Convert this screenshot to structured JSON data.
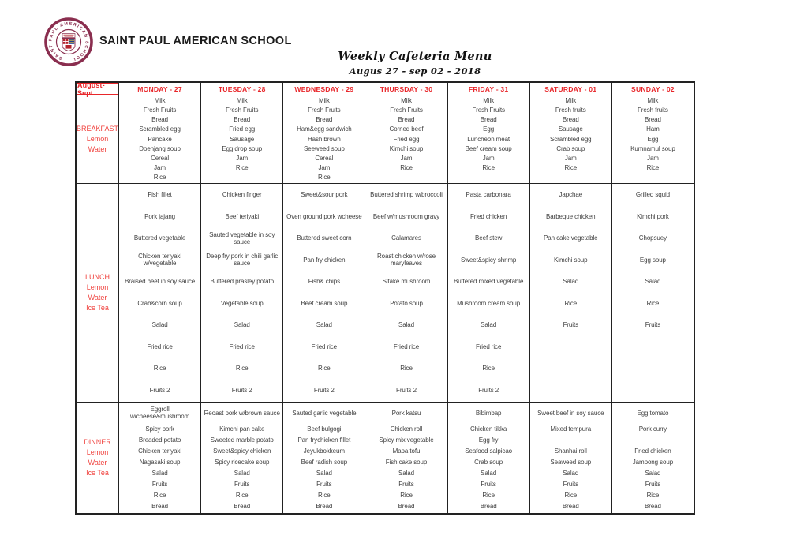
{
  "colors": {
    "accent_red": "#e8262a",
    "label_red": "#f0433f",
    "text": "#3f3f3f",
    "border": "#222222",
    "logo_maroon": "#8a2e4f",
    "crest_red": "#b5232d",
    "crest_blue": "#1d3e8f",
    "crest_yellow": "#e8c23a"
  },
  "header": {
    "school_name": "SAINT PAUL AMERICAN SCHOOL",
    "menu_title": "Weekly Cafeteria Menu",
    "date_range": "Augus 27 - sep 02 - 2018",
    "logo_ring_text": "SAINT PAUL AMERICAN SCHOOL"
  },
  "table": {
    "corner_label": "August-Sept",
    "day_headers": [
      "MONDAY - 27",
      "TUESDAY - 28",
      "WEDNESDAY - 29",
      "THURSDAY - 30",
      "FRIDAY - 31",
      "SATURDAY - 01",
      "SUNDAY - 02"
    ],
    "meal_rows": [
      {
        "id": "breakfast",
        "label_lines": [
          "BREAKFAST",
          "Lemon",
          "Water"
        ],
        "cells": [
          [
            "Milk",
            "Fresh Fruits",
            "Bread",
            "Scrambled egg",
            "Pancake",
            "Doenjang soup",
            "Cereal",
            "Jam",
            "Rice"
          ],
          [
            "Milk",
            "Fresh Fruits",
            "Bread",
            "Fried egg",
            "Sausage",
            "Egg drop soup",
            "Jam",
            "Rice",
            ""
          ],
          [
            "Milk",
            "Fresh Fruits",
            "Bread",
            "Ham&egg sandwich",
            "Hash brown",
            "Seeweed soup",
            "Cereal",
            "Jam",
            "Rice"
          ],
          [
            "Milk",
            "Fresh Fruits",
            "Bread",
            "Corned beef",
            "Fried egg",
            "Kimchi soup",
            "Jam",
            "Rice",
            ""
          ],
          [
            "Milk",
            "Fresh Fruits",
            "Bread",
            "Egg",
            "Luncheon meat",
            "Beef cream soup",
            "Jam",
            "Rice",
            ""
          ],
          [
            "Milk",
            "Fresh fruits",
            "Bread",
            "Sausage",
            "Scrambled egg",
            "Crab soup",
            "Jam",
            "Rice",
            ""
          ],
          [
            "Milk",
            "Fresh fruits",
            "Bread",
            "Ham",
            "Egg",
            "Kumnamul soup",
            "Jam",
            "Rice",
            ""
          ]
        ]
      },
      {
        "id": "lunch",
        "label_lines": [
          "LUNCH",
          "Lemon",
          "Water",
          "Ice Tea"
        ],
        "cells": [
          [
            "Fish fillet",
            "Pork jajang",
            "Buttered vegetable",
            "Chicken teriyaki w/vegetable",
            "Braised beef in soy sauce",
            "Crab&corn soup",
            "Salad",
            "Fried rice",
            "Rice",
            "Fruits 2"
          ],
          [
            "Chicken finger",
            "Beef teriyaki",
            "Sauted vegetable in soy sauce",
            "Deep fry pork in chili garlic sauce",
            "Buttered prasley potato",
            "Vegetable soup",
            "Salad",
            "Fried rice",
            "Rice",
            "Fruits 2"
          ],
          [
            "Sweet&sour pork",
            "Oven ground pork wcheese",
            "Buttered sweet corn",
            "Pan fry chicken",
            "Fish& chips",
            "Beef cream soup",
            "Salad",
            "Fried rice",
            "Rice",
            "Fruits 2"
          ],
          [
            "Buttered shrimp w/broccoli",
            "Beef w/mushroom gravy",
            "Calamares",
            "Roast chicken w/rose maryleaves",
            "Sitake mushroom",
            "Potato soup",
            "Salad",
            "Fried rice",
            "Rice",
            "Fruits 2"
          ],
          [
            "Pasta carbonara",
            "Fried chicken",
            "Beef stew",
            "Sweet&spicy shrimp",
            "Buttered mixed vegetable",
            "Mushroom cream soup",
            "Salad",
            "Fried rice",
            "Rice",
            "Fruits 2"
          ],
          [
            "Japchae",
            "Barbeque chicken",
            "Pan cake vegetable",
            "Kimchi soup",
            "Salad",
            "Rice",
            "Fruits",
            "",
            "",
            ""
          ],
          [
            "Grilled squid",
            "Kimchi pork",
            "Chopsuey",
            "Egg soup",
            "Salad",
            "Rice",
            "Fruits",
            "",
            "",
            ""
          ]
        ]
      },
      {
        "id": "dinner",
        "label_lines": [
          "DINNER",
          "Lemon",
          "Water",
          "Ice Tea"
        ],
        "cells": [
          [
            "Eggroll w/cheese&mushroom",
            "Spicy pork",
            "Breaded potato",
            "Chicken teriyaki",
            "Nagasaki soup",
            "Salad",
            "Fruits",
            "Rice",
            "Bread"
          ],
          [
            "Reoast pork w/brown sauce",
            "Kimchi pan cake",
            "Sweeted marble potato",
            "Sweet&spicy chicken",
            "Spicy ricecake soup",
            "Salad",
            "Fruits",
            "Rice",
            "Bread"
          ],
          [
            "Sauted garlic vegetable",
            "Beef bulgogi",
            "Pan frychicken fillet",
            "Jeyukbokkeum",
            "Beef radish soup",
            "Salad",
            "Fruits",
            "Rice",
            "Bread"
          ],
          [
            "Pork katsu",
            "Chicken roll",
            "Spicy mix vegetable",
            "Mapa tofu",
            "Fish cake soup",
            "Salad",
            "Fruits",
            "Rice",
            "Bread"
          ],
          [
            "Bibimbap",
            "Chicken tikka",
            "Egg fry",
            "Seafood salpicao",
            "Crab soup",
            "Salad",
            "Fruits",
            "Rice",
            "Bread"
          ],
          [
            "Sweet beef in soy sauce",
            "Mixed tempura",
            "",
            "Shanhai roll",
            "Seaweed soup",
            "Salad",
            "Fruits",
            "Rice",
            "Bread"
          ],
          [
            "Egg tomato",
            "Pork curry",
            "",
            "Fried chicken",
            "Jampong soup",
            "Salad",
            "Fruits",
            "Rice",
            "Bread"
          ]
        ]
      }
    ]
  }
}
